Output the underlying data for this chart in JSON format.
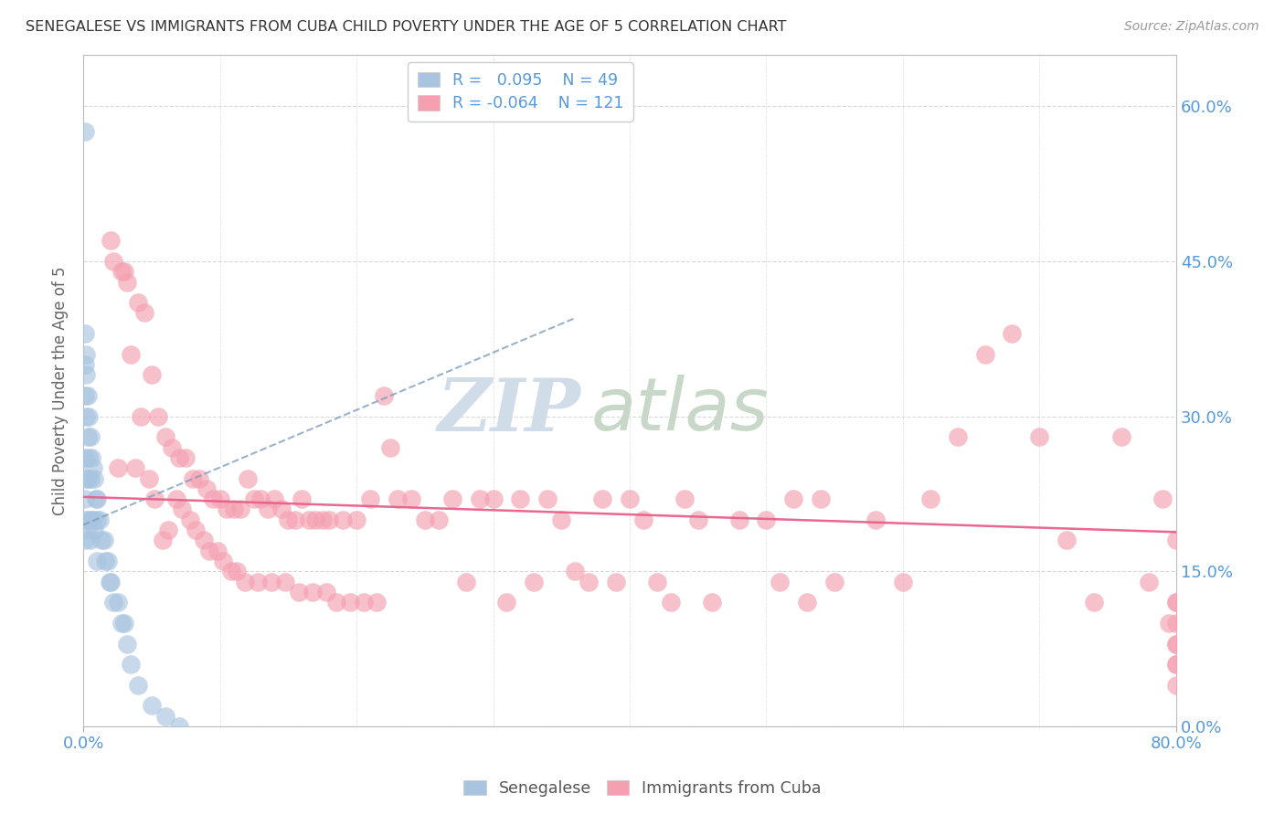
{
  "title": "SENEGALESE VS IMMIGRANTS FROM CUBA CHILD POVERTY UNDER THE AGE OF 5 CORRELATION CHART",
  "source": "Source: ZipAtlas.com",
  "ylabel": "Child Poverty Under the Age of 5",
  "xlim": [
    0.0,
    0.8
  ],
  "ylim": [
    0.0,
    0.65
  ],
  "yticks": [
    0.0,
    0.15,
    0.3,
    0.45,
    0.6
  ],
  "ytick_labels": [
    "0.0%",
    "15.0%",
    "30.0%",
    "45.0%",
    "60.0%"
  ],
  "senegalese_R": 0.095,
  "senegalese_N": 49,
  "cuba_R": -0.064,
  "cuba_N": 121,
  "senegalese_color": "#a8c4e0",
  "cuba_color": "#f4a0b0",
  "trendline_senegalese_color": "#7799bb",
  "trendline_cuba_color": "#e8608a",
  "background_color": "#ffffff",
  "grid_color": "#d0d0d0",
  "title_color": "#333333",
  "tick_label_color": "#5599dd",
  "senegalese_x": [
    0.001,
    0.001,
    0.001,
    0.001,
    0.001,
    0.001,
    0.001,
    0.002,
    0.002,
    0.002,
    0.002,
    0.002,
    0.003,
    0.003,
    0.003,
    0.003,
    0.004,
    0.004,
    0.004,
    0.005,
    0.005,
    0.005,
    0.006,
    0.006,
    0.007,
    0.007,
    0.008,
    0.008,
    0.009,
    0.01,
    0.01,
    0.01,
    0.012,
    0.013,
    0.015,
    0.016,
    0.018,
    0.019,
    0.02,
    0.022,
    0.025,
    0.028,
    0.03,
    0.032,
    0.035,
    0.04,
    0.05,
    0.06,
    0.07
  ],
  "senegalese_y": [
    0.575,
    0.38,
    0.35,
    0.32,
    0.26,
    0.22,
    0.18,
    0.36,
    0.34,
    0.3,
    0.24,
    0.2,
    0.32,
    0.28,
    0.24,
    0.19,
    0.3,
    0.26,
    0.2,
    0.28,
    0.24,
    0.18,
    0.26,
    0.2,
    0.25,
    0.2,
    0.24,
    0.19,
    0.22,
    0.22,
    0.2,
    0.16,
    0.2,
    0.18,
    0.18,
    0.16,
    0.16,
    0.14,
    0.14,
    0.12,
    0.12,
    0.1,
    0.1,
    0.08,
    0.06,
    0.04,
    0.02,
    0.01,
    0.0
  ],
  "cuba_x": [
    0.02,
    0.022,
    0.025,
    0.028,
    0.03,
    0.032,
    0.035,
    0.038,
    0.04,
    0.042,
    0.045,
    0.048,
    0.05,
    0.052,
    0.055,
    0.058,
    0.06,
    0.062,
    0.065,
    0.068,
    0.07,
    0.072,
    0.075,
    0.078,
    0.08,
    0.082,
    0.085,
    0.088,
    0.09,
    0.092,
    0.095,
    0.098,
    0.1,
    0.102,
    0.105,
    0.108,
    0.11,
    0.112,
    0.115,
    0.118,
    0.12,
    0.125,
    0.128,
    0.13,
    0.135,
    0.138,
    0.14,
    0.145,
    0.148,
    0.15,
    0.155,
    0.158,
    0.16,
    0.165,
    0.168,
    0.17,
    0.175,
    0.178,
    0.18,
    0.185,
    0.19,
    0.195,
    0.2,
    0.205,
    0.21,
    0.215,
    0.22,
    0.225,
    0.23,
    0.24,
    0.25,
    0.26,
    0.27,
    0.28,
    0.29,
    0.3,
    0.31,
    0.32,
    0.33,
    0.34,
    0.35,
    0.36,
    0.37,
    0.38,
    0.39,
    0.4,
    0.41,
    0.42,
    0.43,
    0.44,
    0.45,
    0.46,
    0.48,
    0.5,
    0.51,
    0.52,
    0.53,
    0.54,
    0.55,
    0.58,
    0.6,
    0.62,
    0.64,
    0.66,
    0.68,
    0.7,
    0.72,
    0.74,
    0.76,
    0.78,
    0.79,
    0.795,
    0.8,
    0.8,
    0.8,
    0.8,
    0.8,
    0.8,
    0.8,
    0.8,
    0.8
  ],
  "cuba_y": [
    0.47,
    0.45,
    0.25,
    0.44,
    0.44,
    0.43,
    0.36,
    0.25,
    0.41,
    0.3,
    0.4,
    0.24,
    0.34,
    0.22,
    0.3,
    0.18,
    0.28,
    0.19,
    0.27,
    0.22,
    0.26,
    0.21,
    0.26,
    0.2,
    0.24,
    0.19,
    0.24,
    0.18,
    0.23,
    0.17,
    0.22,
    0.17,
    0.22,
    0.16,
    0.21,
    0.15,
    0.21,
    0.15,
    0.21,
    0.14,
    0.24,
    0.22,
    0.14,
    0.22,
    0.21,
    0.14,
    0.22,
    0.21,
    0.14,
    0.2,
    0.2,
    0.13,
    0.22,
    0.2,
    0.13,
    0.2,
    0.2,
    0.13,
    0.2,
    0.12,
    0.2,
    0.12,
    0.2,
    0.12,
    0.22,
    0.12,
    0.32,
    0.27,
    0.22,
    0.22,
    0.2,
    0.2,
    0.22,
    0.14,
    0.22,
    0.22,
    0.12,
    0.22,
    0.14,
    0.22,
    0.2,
    0.15,
    0.14,
    0.22,
    0.14,
    0.22,
    0.2,
    0.14,
    0.12,
    0.22,
    0.2,
    0.12,
    0.2,
    0.2,
    0.14,
    0.22,
    0.12,
    0.22,
    0.14,
    0.2,
    0.14,
    0.22,
    0.28,
    0.36,
    0.38,
    0.28,
    0.18,
    0.12,
    0.28,
    0.14,
    0.22,
    0.1,
    0.18,
    0.08,
    0.12,
    0.06,
    0.08,
    0.04,
    0.06,
    0.12,
    0.1
  ],
  "sen_trend_x": [
    0.0,
    0.36
  ],
  "sen_trend_y": [
    0.195,
    0.395
  ],
  "cuba_trend_x": [
    0.0,
    0.8
  ],
  "cuba_trend_y": [
    0.222,
    0.188
  ]
}
